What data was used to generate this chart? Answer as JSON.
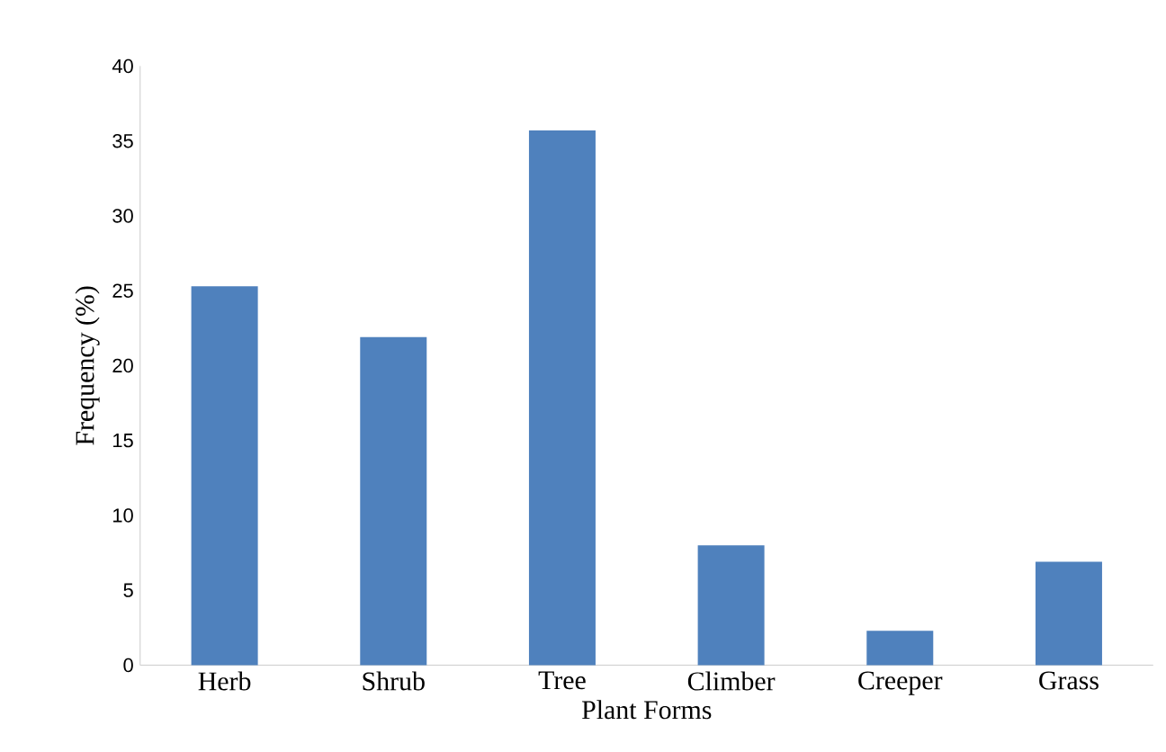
{
  "chart_data": {
    "type": "bar",
    "xlabel": "Plant Forms",
    "ylabel": "Frequency (%)",
    "categories": [
      "Herb",
      "Shrub",
      "Tree",
      "Climber",
      "Creeper",
      "Grass"
    ],
    "values": [
      25.3,
      21.9,
      35.7,
      8.0,
      2.3,
      6.9
    ],
    "color": "#4f81bd",
    "ylim": [
      0,
      40
    ],
    "yticks": [
      0,
      5,
      10,
      15,
      20,
      25,
      30,
      35,
      40
    ],
    "grid": false
  }
}
